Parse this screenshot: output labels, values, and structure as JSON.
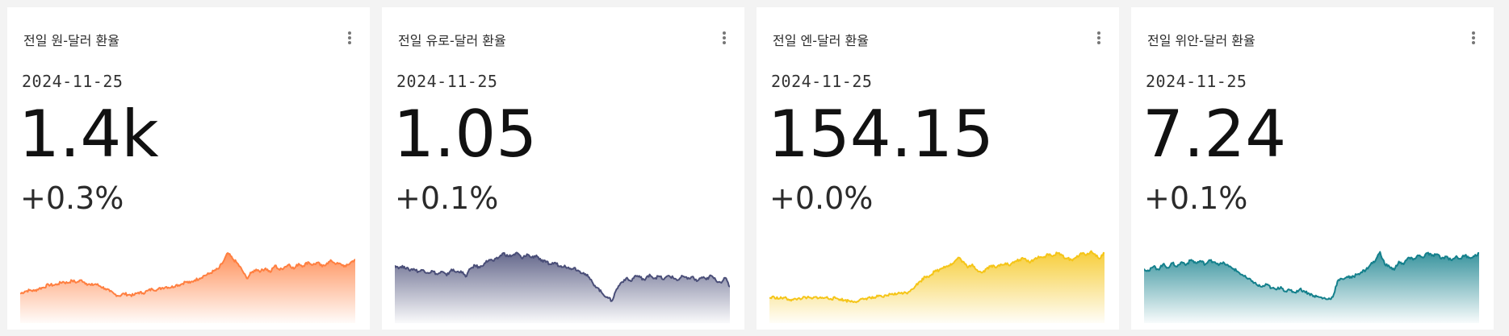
{
  "cards": [
    {
      "title": "전일 원-달러 환율",
      "date": "2024-11-25",
      "value": "1.4k",
      "change": "+0.3%",
      "color": "#ff7f40",
      "menu_icon": "more-vert-icon",
      "trend": [
        0.18,
        0.22,
        0.24,
        0.23,
        0.27,
        0.29,
        0.34,
        0.33,
        0.35,
        0.39,
        0.37,
        0.41,
        0.38,
        0.42,
        0.36,
        0.33,
        0.35,
        0.31,
        0.27,
        0.22,
        0.17,
        0.14,
        0.18,
        0.16,
        0.15,
        0.2,
        0.19,
        0.23,
        0.26,
        0.25,
        0.28,
        0.3,
        0.29,
        0.33,
        0.34,
        0.39,
        0.37,
        0.42,
        0.45,
        0.5,
        0.53,
        0.58,
        0.62,
        0.74,
        0.9,
        0.8,
        0.72,
        0.6,
        0.45,
        0.55,
        0.61,
        0.58,
        0.63,
        0.56,
        0.68,
        0.6,
        0.65,
        0.7,
        0.62,
        0.71,
        0.67,
        0.74,
        0.69,
        0.73,
        0.66,
        0.72,
        0.76,
        0.71,
        0.7,
        0.66,
        0.73,
        0.79
      ]
    },
    {
      "title": "전일 유로-달러 환율",
      "date": "2024-11-25",
      "value": "1.05",
      "change": "+0.1%",
      "color": "#4a4e78",
      "menu_icon": "more-vert-icon",
      "trend": [
        0.68,
        0.64,
        0.66,
        0.6,
        0.62,
        0.57,
        0.6,
        0.55,
        0.58,
        0.52,
        0.57,
        0.5,
        0.61,
        0.56,
        0.58,
        0.48,
        0.62,
        0.68,
        0.64,
        0.72,
        0.78,
        0.76,
        0.82,
        0.9,
        0.84,
        0.86,
        0.9,
        0.8,
        0.88,
        0.82,
        0.86,
        0.76,
        0.74,
        0.7,
        0.73,
        0.66,
        0.68,
        0.62,
        0.64,
        0.58,
        0.55,
        0.48,
        0.36,
        0.28,
        0.18,
        0.12,
        0.05,
        0.26,
        0.38,
        0.45,
        0.4,
        0.5,
        0.47,
        0.42,
        0.52,
        0.45,
        0.49,
        0.43,
        0.5,
        0.46,
        0.42,
        0.49,
        0.44,
        0.48,
        0.4,
        0.47,
        0.43,
        0.5,
        0.42,
        0.38,
        0.46,
        0.3
      ]
    },
    {
      "title": "전일 엔-달러 환율",
      "date": "2024-11-25",
      "value": "154.15",
      "change": "+0.0%",
      "color": "#f5c518",
      "menu_icon": "more-vert-icon",
      "trend": [
        0.1,
        0.12,
        0.09,
        0.11,
        0.08,
        0.07,
        0.09,
        0.1,
        0.11,
        0.09,
        0.12,
        0.1,
        0.11,
        0.09,
        0.1,
        0.08,
        0.06,
        0.05,
        0.04,
        0.06,
        0.08,
        0.11,
        0.1,
        0.13,
        0.12,
        0.15,
        0.18,
        0.17,
        0.2,
        0.19,
        0.25,
        0.32,
        0.4,
        0.48,
        0.5,
        0.57,
        0.6,
        0.66,
        0.68,
        0.72,
        0.82,
        0.75,
        0.64,
        0.7,
        0.6,
        0.55,
        0.62,
        0.68,
        0.64,
        0.7,
        0.72,
        0.68,
        0.75,
        0.78,
        0.8,
        0.74,
        0.78,
        0.84,
        0.82,
        0.88,
        0.84,
        0.9,
        0.86,
        0.8,
        0.78,
        0.82,
        0.9,
        0.86,
        0.92,
        0.88,
        0.8,
        0.9
      ]
    },
    {
      "title": "전일 위안-달러 환율",
      "date": "2024-11-25",
      "value": "7.24",
      "change": "+0.1%",
      "color": "#14808c",
      "menu_icon": "more-vert-icon",
      "trend": [
        0.62,
        0.58,
        0.66,
        0.61,
        0.7,
        0.64,
        0.72,
        0.66,
        0.74,
        0.7,
        0.78,
        0.72,
        0.76,
        0.7,
        0.77,
        0.74,
        0.7,
        0.72,
        0.66,
        0.62,
        0.56,
        0.5,
        0.44,
        0.4,
        0.33,
        0.3,
        0.34,
        0.28,
        0.25,
        0.3,
        0.22,
        0.24,
        0.2,
        0.26,
        0.22,
        0.18,
        0.14,
        0.12,
        0.1,
        0.08,
        0.12,
        0.4,
        0.44,
        0.48,
        0.46,
        0.52,
        0.56,
        0.6,
        0.7,
        0.76,
        0.92,
        0.7,
        0.66,
        0.6,
        0.75,
        0.7,
        0.82,
        0.78,
        0.86,
        0.82,
        0.9,
        0.85,
        0.88,
        0.8,
        0.84,
        0.78,
        0.83,
        0.8,
        0.86,
        0.82,
        0.84,
        0.9
      ]
    }
  ]
}
